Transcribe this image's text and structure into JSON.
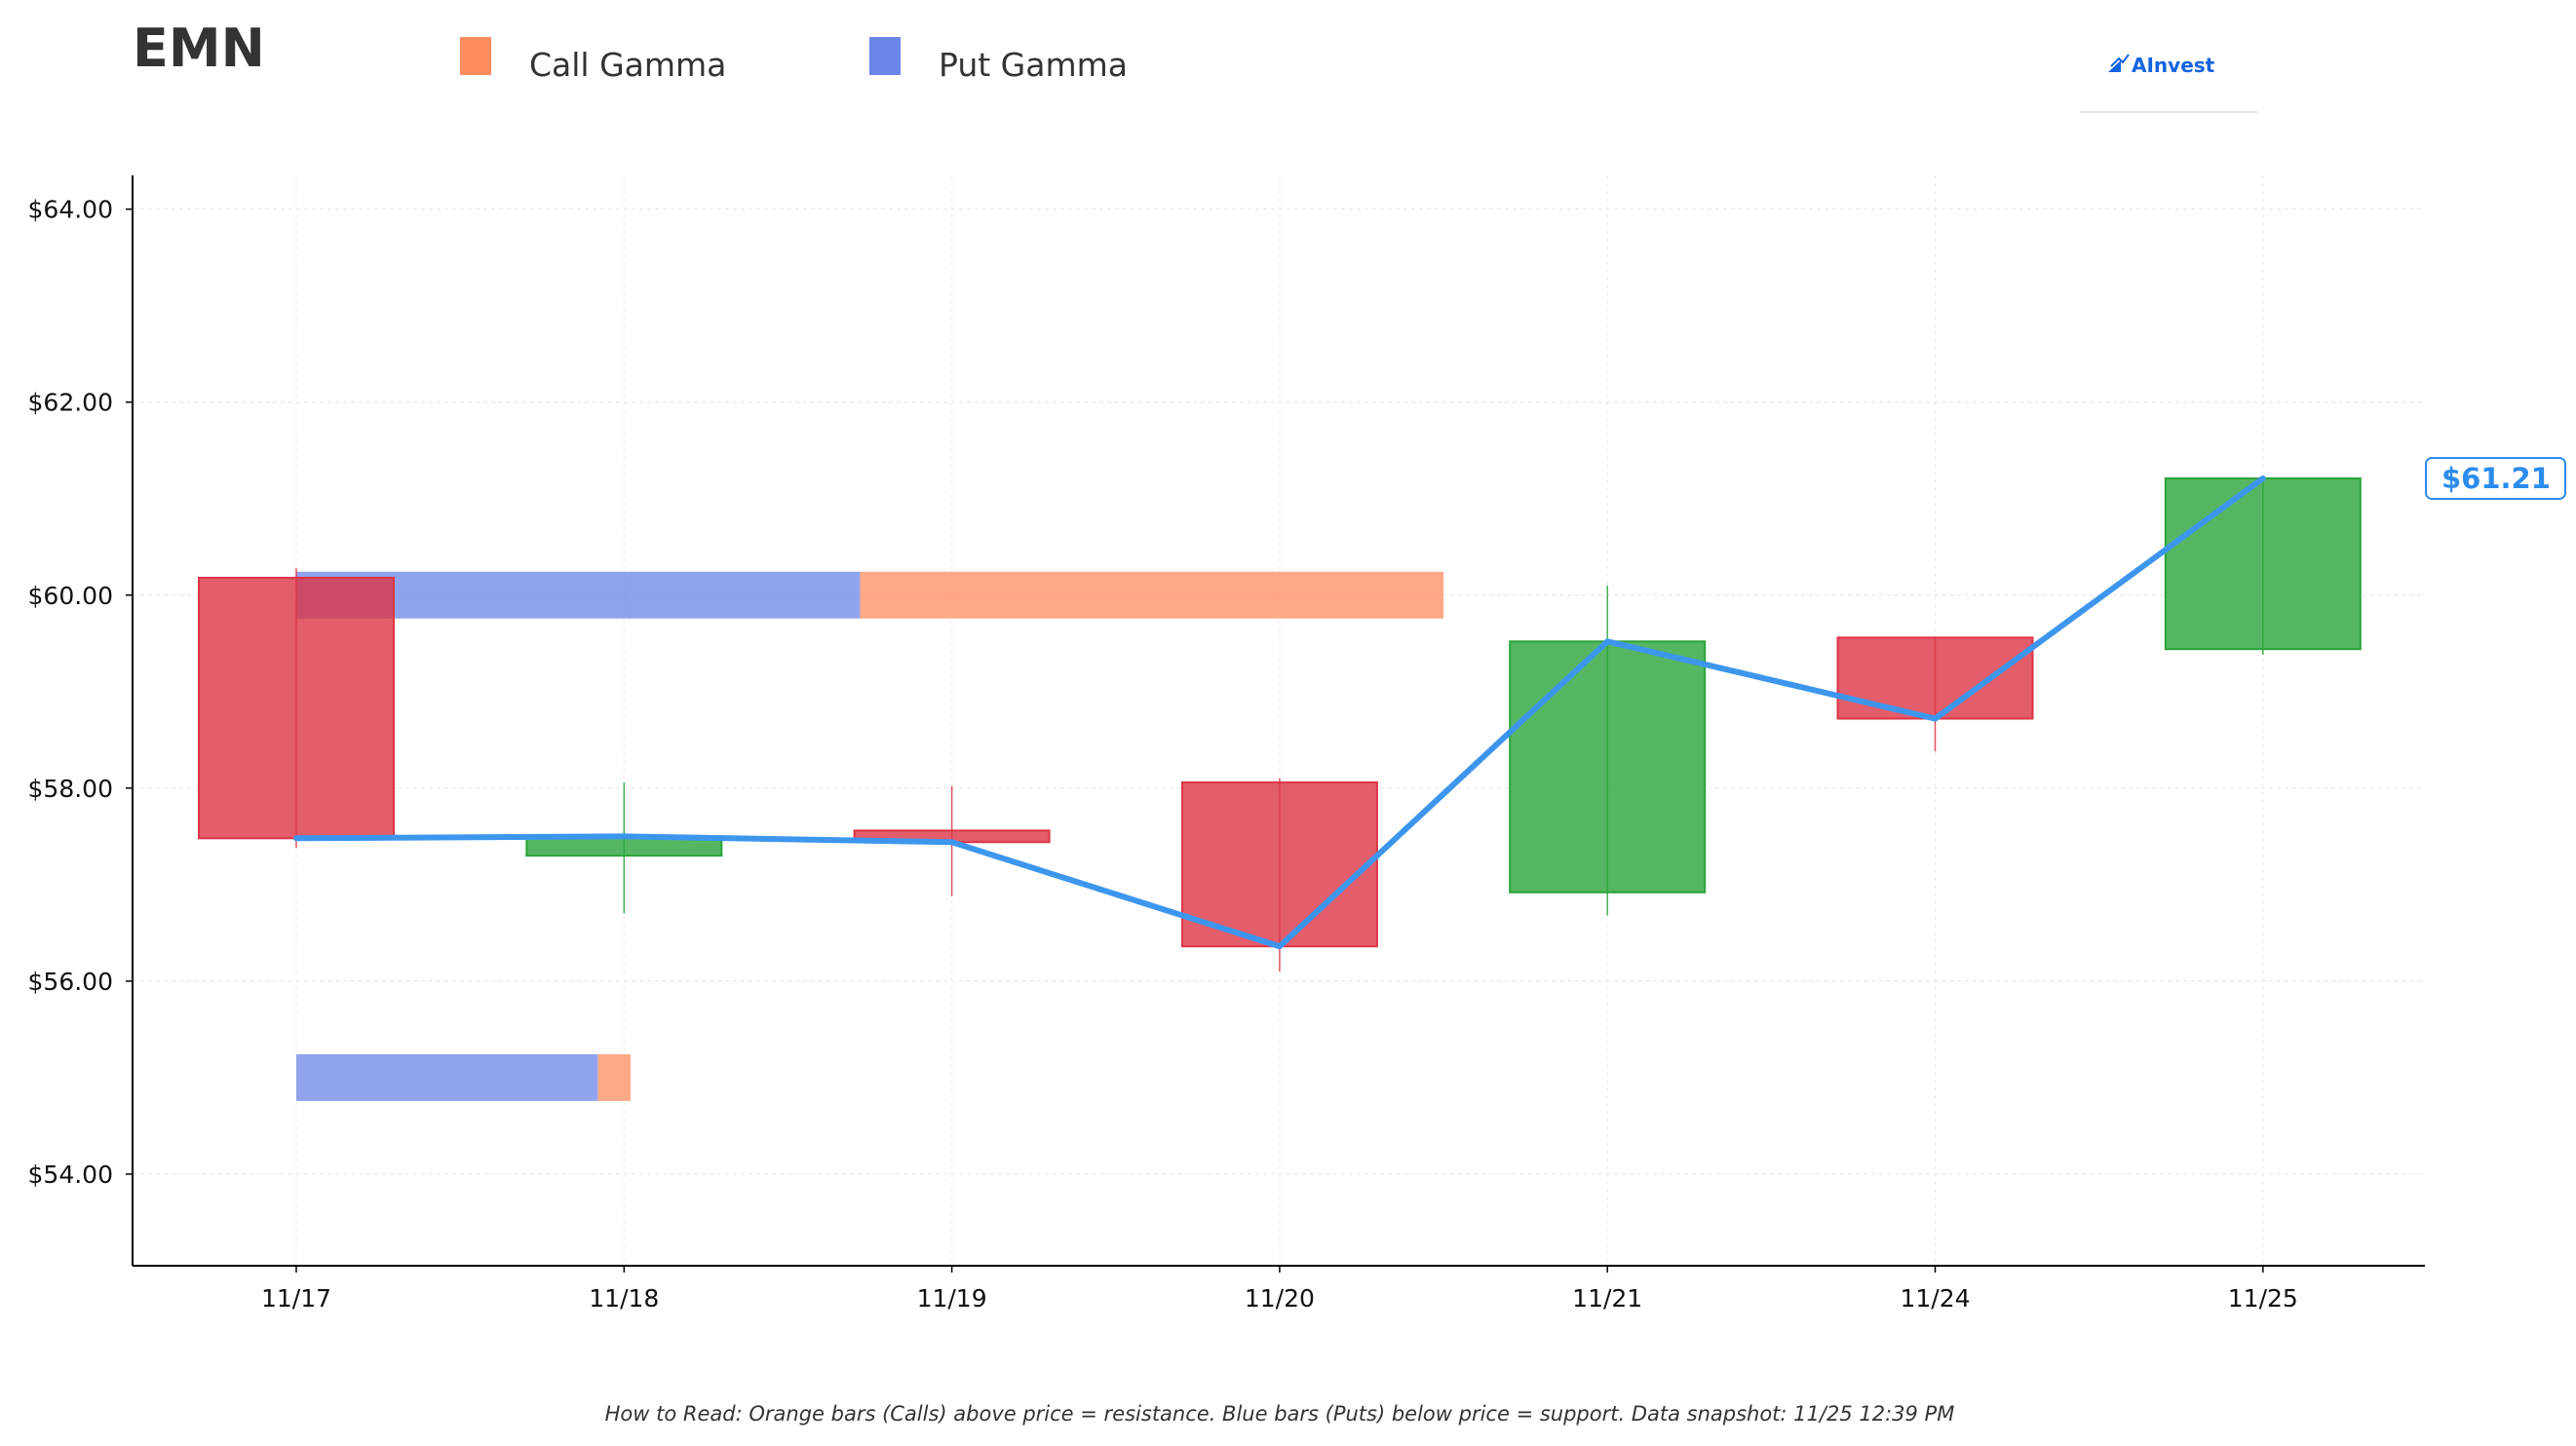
{
  "chart_data": {
    "type": "candlestick",
    "title": "EMN",
    "legend": {
      "placement": "top",
      "entries": [
        {
          "label": "Call Gamma",
          "color": "#ff8c5f"
        },
        {
          "label": "Put Gamma",
          "color": "#6b86e8"
        }
      ]
    },
    "brand": "AInvest",
    "categories": [
      "11/17",
      "11/18",
      "11/19",
      "11/20",
      "11/21",
      "11/24",
      "11/25"
    ],
    "candles": [
      {
        "x": "11/17",
        "open": 60.18,
        "close": 57.48,
        "high": 60.28,
        "low": 57.38
      },
      {
        "x": "11/18",
        "open": 57.3,
        "close": 57.5,
        "high": 58.06,
        "low": 56.7
      },
      {
        "x": "11/19",
        "open": 57.56,
        "close": 57.44,
        "high": 58.02,
        "low": 56.88
      },
      {
        "x": "11/20",
        "open": 58.06,
        "close": 56.36,
        "high": 58.1,
        "low": 56.1
      },
      {
        "x": "11/21",
        "open": 56.92,
        "close": 59.52,
        "high": 60.1,
        "low": 56.68
      },
      {
        "x": "11/24",
        "open": 59.56,
        "close": 58.72,
        "high": 59.56,
        "low": 58.38
      },
      {
        "x": "11/25",
        "open": 59.44,
        "close": 61.21,
        "high": 61.24,
        "low": 59.38
      }
    ],
    "price_line": {
      "name": "",
      "color": "#3d96ee",
      "values": [
        57.48,
        57.5,
        57.44,
        56.36,
        59.52,
        58.72,
        61.21
      ]
    },
    "gamma_bars": [
      {
        "type": "put",
        "level": 60.0,
        "start": 0,
        "end": 1.72
      },
      {
        "type": "call",
        "level": 60.0,
        "start": 1.72,
        "end": 3.5
      },
      {
        "type": "put",
        "level": 55.0,
        "start": 0,
        "end": 0.92
      },
      {
        "type": "call",
        "level": 55.0,
        "start": 0.92,
        "end": 1.02
      }
    ],
    "last_price_label": "$61.21",
    "ylim": [
      53.05,
      64.35
    ],
    "yticks": [
      54.0,
      56.0,
      58.0,
      60.0,
      62.0,
      64.0
    ],
    "ytick_labels": [
      "$54.00",
      "$56.00",
      "$58.00",
      "$60.00",
      "$62.00",
      "$64.00"
    ],
    "xlabel": "",
    "ylabel": "",
    "grid": true,
    "colors": {
      "up": "#2aa43a",
      "down": "#dc3545",
      "call": "#ff8c5f",
      "put": "#6b86e8"
    },
    "footnote": "How to Read: Orange bars (Calls) above price = resistance. Blue bars (Puts) below price = support. Data snapshot: 11/25 12:39 PM"
  }
}
